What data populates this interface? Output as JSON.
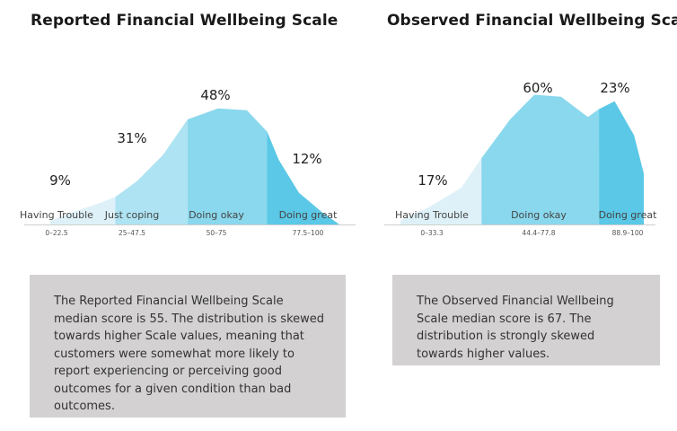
{
  "chart_data": [
    {
      "type": "area",
      "title": "Reported Financial Wellbeing Scale",
      "bands": [
        {
          "label": "Having Trouble",
          "range": "0–22.5",
          "percent": "9%",
          "color": "#def1f8",
          "x_start": 0,
          "x_end": 22.5
        },
        {
          "label": "Just coping",
          "range": "25–47.5",
          "percent": "31%",
          "color": "#ade3f2",
          "x_start": 22.5,
          "x_end": 47.5
        },
        {
          "label": "Doing okay",
          "range": "50–75",
          "percent": "48%",
          "color": "#8ad8ed",
          "x_start": 47.5,
          "x_end": 75
        },
        {
          "label": "Doing great",
          "range": "77.5–100",
          "percent": "12%",
          "color": "#5ac8e6",
          "x_start": 75,
          "x_end": 100
        }
      ],
      "x": [
        0,
        5,
        10,
        17,
        22.5,
        30,
        39,
        47.5,
        58,
        68,
        75,
        79,
        86,
        94,
        100
      ],
      "density": [
        0.3,
        0.75,
        1.2,
        1.75,
        2.25,
        3.55,
        5.7,
        8.6,
        9.5,
        9.35,
        7.6,
        5.3,
        2.6,
        1.0,
        0.0
      ],
      "ylim": [
        0,
        10
      ]
    },
    {
      "type": "area",
      "title": "Observed Financial Wellbeing Scale",
      "bands": [
        {
          "label": "Having Trouble",
          "range": "0–33.3",
          "percent": "17%",
          "color": "#def1f8",
          "x_start": 0,
          "x_end": 33.3
        },
        {
          "label": "Doing okay",
          "range": "44.4–77.8",
          "percent": "60%",
          "color": "#8ad8ed",
          "x_start": 33.3,
          "x_end": 81.6
        },
        {
          "label": "Doing great",
          "range": "88.9–100",
          "percent": "23%",
          "color": "#5ac8e6",
          "x_start": 81.6,
          "x_end": 100
        }
      ],
      "x": [
        0,
        12,
        25,
        33.3,
        45,
        55,
        66,
        77,
        81.6,
        88,
        96,
        100
      ],
      "density": [
        0.3,
        1.35,
        2.8,
        5.05,
        8.0,
        9.9,
        9.75,
        8.2,
        8.8,
        9.4,
        6.8,
        3.9
      ],
      "ylim": [
        0,
        10
      ]
    }
  ],
  "notes": {
    "left": "The Reported Financial Wellbeing Scale median score is 55. The distribution is skewed towards higher Scale values, meaning that customers were somewhat more likely to report experiencing or perceiving good outcomes for a given condition than bad outcomes.",
    "right": "The Observed Financial Wellbeing Scale median score is 67. The distribution is strongly skewed towards higher values."
  },
  "colors": {
    "band_light": "#def1f8",
    "band_mid_light": "#ade3f2",
    "band_mid": "#8ad8ed",
    "band_dark": "#5ac8e6",
    "note_background": "#d3d1d1"
  }
}
